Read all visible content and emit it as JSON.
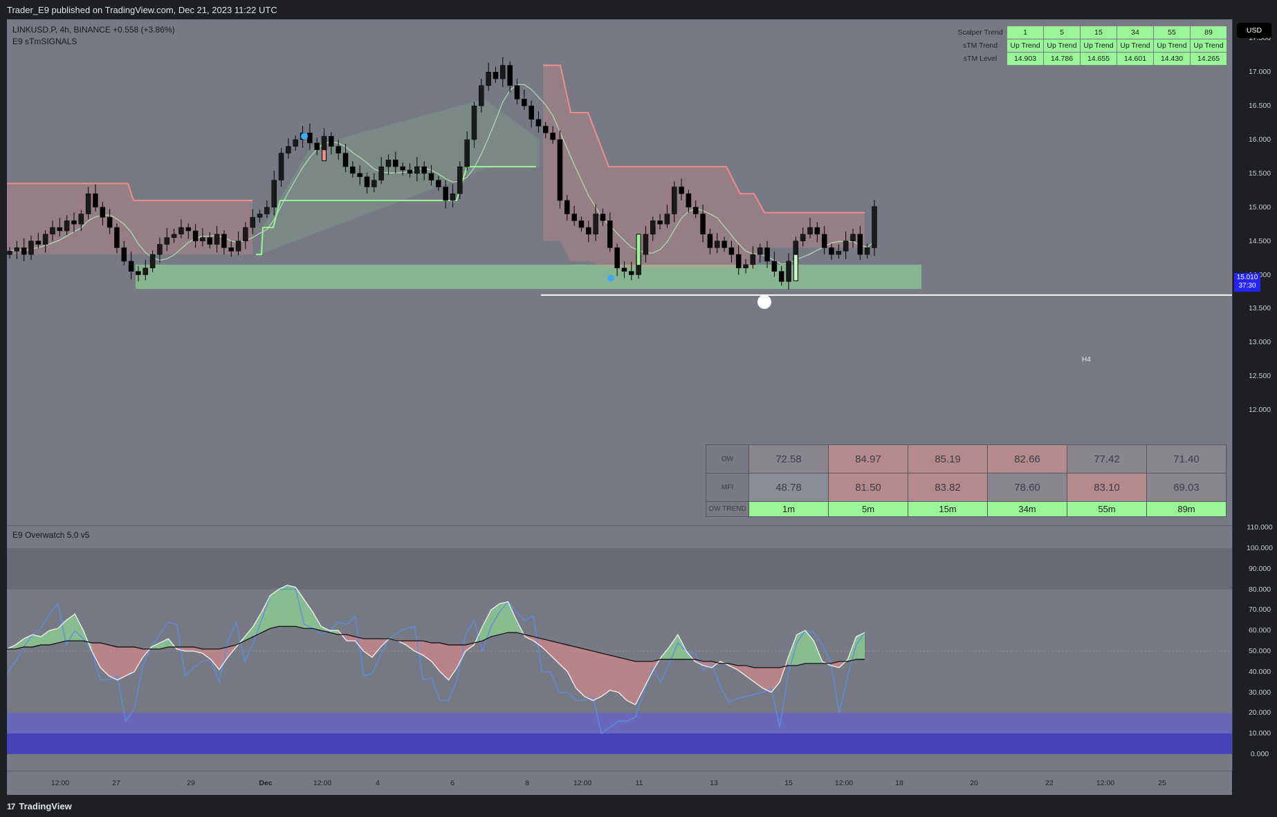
{
  "header": {
    "published": "Trader_E9 published on TradingView.com, Dec 21, 2023 11:22 UTC"
  },
  "legend": {
    "symbol_line": "LINKUSD.P, 4h, BINANCE  +0.558 (+3.86%)",
    "indicator1": "E9 sTmSIGNALS",
    "indicator2": "E9 Overwatch 5.0 v5"
  },
  "currency": "USD",
  "price_tag": {
    "price": "15.010",
    "countdown": "37:30"
  },
  "zone_label": "H4",
  "footer": {
    "logo_text": "TradingView"
  },
  "scalper_table": {
    "headers": [
      "Scalper Trend",
      "1",
      "5",
      "15",
      "34",
      "55",
      "89"
    ],
    "rows": [
      {
        "label": "sTM Trend",
        "cells": [
          "Up Trend",
          "Up Trend",
          "Up Trend",
          "Up Trend",
          "Up Trend",
          "Up Trend"
        ]
      },
      {
        "label": "sTM Level",
        "cells": [
          "14.903",
          "14.786",
          "14.655",
          "14.601",
          "14.430",
          "14.265"
        ]
      }
    ]
  },
  "ow_table": {
    "rows": [
      {
        "label": "OW",
        "cells": [
          "72.58",
          "84.97",
          "85.19",
          "82.66",
          "77.42",
          "71.40"
        ],
        "colors": [
          "#8a868e",
          "#b48a8e",
          "#b48a8e",
          "#b48a8e",
          "#8a868e",
          "#8a868e"
        ]
      },
      {
        "label": "MFI",
        "cells": [
          "48.78",
          "81.50",
          "83.82",
          "78.60",
          "83.10",
          "69.03"
        ],
        "colors": [
          "#8a8d98",
          "#b48a8e",
          "#b48a8e",
          "#8a868e",
          "#b48a8e",
          "#8a868e"
        ]
      },
      {
        "label": "OW TREND",
        "cells": [
          "1m",
          "5m",
          "15m",
          "34m",
          "55m",
          "89m"
        ],
        "colors": [
          "#98f598",
          "#98f598",
          "#98f598",
          "#98f598",
          "#98f598",
          "#98f598"
        ]
      }
    ]
  },
  "colors": {
    "background": "#777a85",
    "bull": "#98f598",
    "bear": "#f08c8c",
    "support_zone": "#8fc895",
    "oversold_band": "#6464c8",
    "overbought_band": "#5f616b"
  },
  "chart_data": [
    {
      "type": "candlestick",
      "price_axis_ticks": [
        "17.500",
        "17.000",
        "16.500",
        "16.000",
        "15.500",
        "15.000",
        "14.500",
        "14.000",
        "13.500",
        "13.000",
        "12.500",
        "12.000"
      ],
      "ylim": [
        11.85,
        17.9
      ],
      "time_ticks": [
        "12:00",
        "27",
        "29",
        "Dec",
        "12:00",
        "4",
        "6",
        "8",
        "12:00",
        "11",
        "13",
        "15",
        "12:00",
        "18",
        "20",
        "22",
        "12:00",
        "25"
      ],
      "last_price": 15.01,
      "support_zone": [
        13.79,
        14.15
      ],
      "horizontal_line": 13.7,
      "close_series_approx": [
        14.35,
        14.4,
        14.3,
        14.5,
        14.45,
        14.6,
        14.7,
        14.65,
        14.8,
        14.75,
        14.9,
        15.2,
        15.0,
        14.85,
        14.7,
        14.4,
        14.2,
        14.05,
        14.0,
        14.1,
        14.3,
        14.45,
        14.55,
        14.6,
        14.7,
        14.65,
        14.5,
        14.55,
        14.45,
        14.6,
        14.4,
        14.35,
        14.5,
        14.7,
        14.85,
        14.9,
        15.0,
        15.4,
        15.8,
        15.9,
        16.0,
        16.1,
        15.95,
        15.85,
        16.05,
        15.9,
        15.8,
        15.6,
        15.5,
        15.45,
        15.3,
        15.4,
        15.6,
        15.7,
        15.6,
        15.55,
        15.5,
        15.6,
        15.5,
        15.4,
        15.3,
        15.1,
        15.2,
        15.6,
        16.0,
        16.5,
        16.8,
        17.0,
        16.9,
        17.1,
        16.8,
        16.6,
        16.5,
        16.3,
        16.2,
        16.1,
        16.0,
        15.1,
        14.9,
        14.8,
        14.7,
        14.6,
        14.9,
        14.8,
        14.4,
        14.1,
        14.05,
        14.0,
        14.3,
        14.6,
        14.8,
        14.75,
        14.9,
        15.3,
        15.2,
        15.0,
        14.9,
        14.6,
        14.4,
        14.5,
        14.4,
        14.3,
        14.1,
        14.15,
        14.3,
        14.4,
        14.2,
        14.05,
        13.9,
        14.2,
        14.5,
        14.6,
        14.7,
        14.6,
        14.4,
        14.3,
        14.35,
        14.5,
        14.6,
        14.3,
        14.4,
        15.01
      ]
    },
    {
      "type": "oscillator",
      "axis_ticks": [
        "110.000",
        "100.000",
        "90.000",
        "80.000",
        "70.000",
        "60.000",
        "50.000",
        "40.000",
        "30.000",
        "20.000",
        "10.000",
        "0.000"
      ],
      "ylim": [
        -2,
        112
      ],
      "bands": {
        "overbought": [
          80,
          100
        ],
        "oversold": [
          0,
          20
        ],
        "deep_oversold": [
          0,
          10
        ]
      },
      "ow_fast": [
        51,
        53,
        56,
        58,
        57,
        60,
        61,
        65,
        68,
        60,
        50,
        42,
        38,
        36,
        38,
        40,
        47,
        52,
        54,
        56,
        51,
        50,
        50,
        49,
        46,
        41,
        47,
        52,
        57,
        62,
        69,
        77,
        80,
        82,
        81,
        75,
        69,
        62,
        60,
        60,
        55,
        55,
        50,
        47,
        52,
        56,
        55,
        53,
        50,
        48,
        45,
        40,
        36,
        42,
        50,
        53,
        62,
        70,
        73,
        74,
        65,
        57,
        55,
        52,
        48,
        44,
        40,
        32,
        28,
        26,
        28,
        31,
        30,
        26,
        24,
        32,
        40,
        47,
        52,
        58,
        50,
        45,
        43,
        42,
        45,
        43,
        41,
        38,
        35,
        32,
        30,
        35,
        47,
        58,
        60,
        55,
        45,
        43,
        42,
        46,
        57,
        59
      ],
      "ow_slow": [
        51,
        51,
        52,
        52,
        53,
        53,
        54,
        55,
        55,
        55,
        54,
        54,
        53,
        52,
        52,
        52,
        51,
        51,
        51,
        52,
        52,
        52,
        52,
        51,
        51,
        51,
        52,
        53,
        55,
        57,
        59,
        61,
        62,
        62,
        62,
        61,
        61,
        60,
        59,
        58,
        58,
        57,
        56,
        56,
        56,
        56,
        55,
        55,
        55,
        55,
        54,
        54,
        53,
        53,
        53,
        54,
        55,
        57,
        58,
        59,
        59,
        58,
        57,
        56,
        55,
        54,
        53,
        52,
        51,
        50,
        49,
        48,
        47,
        46,
        45,
        45,
        45,
        46,
        46,
        46,
        46,
        46,
        45,
        45,
        44,
        44,
        43,
        43,
        42,
        42,
        42,
        42,
        43,
        43,
        44,
        44,
        44,
        44,
        45,
        45,
        46,
        46
      ]
    }
  ]
}
